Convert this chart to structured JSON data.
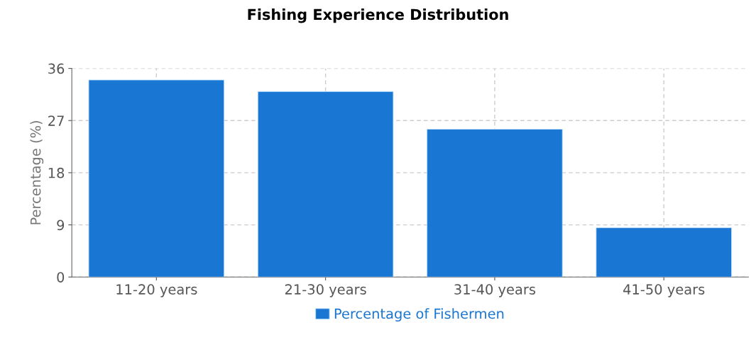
{
  "chart_data": {
    "type": "bar",
    "title": "Fishing Experience Distribution",
    "ylabel": "Percentage (%)",
    "categories": [
      "11-20 years",
      "21-30 years",
      "31-40 years",
      "41-50 years"
    ],
    "series": [
      {
        "name": "Percentage of Fishermen",
        "color": "#1976d2",
        "values": [
          34,
          32,
          25.5,
          8.5
        ]
      }
    ],
    "ylim": [
      0,
      36
    ],
    "yticks": [
      0,
      9,
      18,
      27,
      36
    ],
    "grid": true,
    "legend": "bottom"
  }
}
